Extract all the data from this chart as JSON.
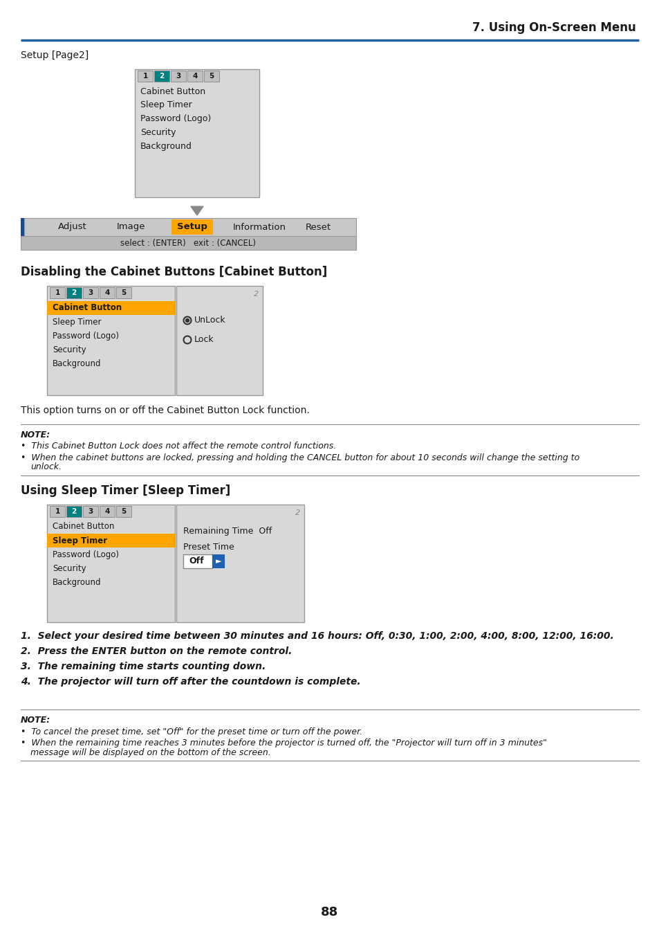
{
  "title_right": "7. Using On-Screen Menu",
  "header_line_color": "#2060a0",
  "page_bg": "#ffffff",
  "section1_label": "Setup [Page2]",
  "menu_items_1": [
    "Cabinet Button",
    "Sleep Timer",
    "Password (Logo)",
    "Security",
    "Background"
  ],
  "tabs": [
    "1",
    "2",
    "3",
    "4",
    "5"
  ],
  "active_tab": 1,
  "tab_active_color": "#008080",
  "navbar_items": [
    "Adjust",
    "Image",
    "Setup",
    "Information",
    "Reset"
  ],
  "navbar_active": "Setup",
  "navbar_active_color": "#FFA500",
  "section2_title": "Disabling the Cabinet Buttons [Cabinet Button]",
  "section2_text": "This option turns on or off the Cabinet Button Lock function.",
  "note1_title": "NOTE:",
  "note1_b1": "This Cabinet Button Lock does not affect the remote control functions.",
  "note1_b2a": "When the cabinet buttons are locked, pressing and holding the CANCEL button for about 10 seconds will change the setting to",
  "note1_b2b": "unlock.",
  "cabinet_button_highlight": "#FFA500",
  "section3_title": "Using Sleep Timer [Sleep Timer]",
  "sleep_timer_highlight": "#FFA500",
  "sleep_timer_right_text1": "Remaining Time  Off",
  "sleep_timer_right_text2": "Preset Time",
  "numbered_items": [
    "Select your desired time between 30 minutes and 16 hours: Off, 0:30, 1:00, 2:00, 4:00, 8:00, 12:00, 16:00.",
    "Press the ENTER button on the remote control.",
    "The remaining time starts counting down.",
    "The projector will turn off after the countdown is complete."
  ],
  "note2_title": "NOTE:",
  "note2_b1": "To cancel the preset time, set \"Off\" for the preset time or turn off the power.",
  "note2_b2a": "When the remaining time reaches 3 minutes before the projector is turned off, the \"Projector will turn off in 3 minutes\"",
  "note2_b2b": "message will be displayed on the bottom of the screen.",
  "page_number": "88"
}
